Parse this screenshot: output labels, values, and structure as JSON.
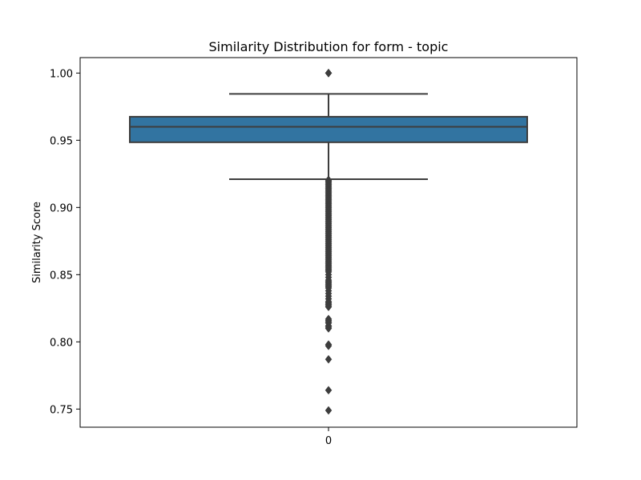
{
  "chart_data": {
    "type": "box",
    "title": "Similarity Distribution for form - topic",
    "xlabel": "",
    "ylabel": "Similarity Score",
    "categories": [
      "0"
    ],
    "ylim": [
      0.7365,
      1.0115
    ],
    "yticks": [
      0.75,
      0.8,
      0.85,
      0.9,
      0.95,
      1.0
    ],
    "ytick_labels": [
      "0.75",
      "0.80",
      "0.85",
      "0.90",
      "0.95",
      "1.00"
    ],
    "grid": false,
    "box": {
      "category": "0",
      "q1": 0.9485,
      "median": 0.96,
      "q3": 0.9675,
      "whisker_low": 0.921,
      "whisker_high": 0.9845,
      "outliers_high": [
        1.0,
        1.0,
        1.0
      ],
      "outliers_low": [
        0.9205,
        0.9198,
        0.919,
        0.918,
        0.917,
        0.916,
        0.915,
        0.914,
        0.913,
        0.912,
        0.911,
        0.91,
        0.909,
        0.908,
        0.907,
        0.906,
        0.905,
        0.904,
        0.903,
        0.902,
        0.901,
        0.9,
        0.899,
        0.898,
        0.897,
        0.896,
        0.895,
        0.894,
        0.893,
        0.892,
        0.891,
        0.89,
        0.889,
        0.888,
        0.887,
        0.886,
        0.885,
        0.884,
        0.883,
        0.882,
        0.881,
        0.88,
        0.879,
        0.878,
        0.877,
        0.876,
        0.875,
        0.874,
        0.873,
        0.872,
        0.871,
        0.87,
        0.869,
        0.868,
        0.867,
        0.866,
        0.865,
        0.864,
        0.863,
        0.862,
        0.861,
        0.86,
        0.859,
        0.858,
        0.857,
        0.856,
        0.855,
        0.854,
        0.853,
        0.852,
        0.85,
        0.848,
        0.846,
        0.845,
        0.844,
        0.843,
        0.842,
        0.841,
        0.84,
        0.838,
        0.836,
        0.834,
        0.832,
        0.83,
        0.829,
        0.828,
        0.827,
        0.826,
        0.817,
        0.816,
        0.815,
        0.814,
        0.812,
        0.811,
        0.81,
        0.798,
        0.797,
        0.787,
        0.764,
        0.749
      ]
    }
  },
  "colors": {
    "box_fill": "#3274a1",
    "box_edge": "#3d3d3d",
    "outlier": "#3d3d3d"
  }
}
